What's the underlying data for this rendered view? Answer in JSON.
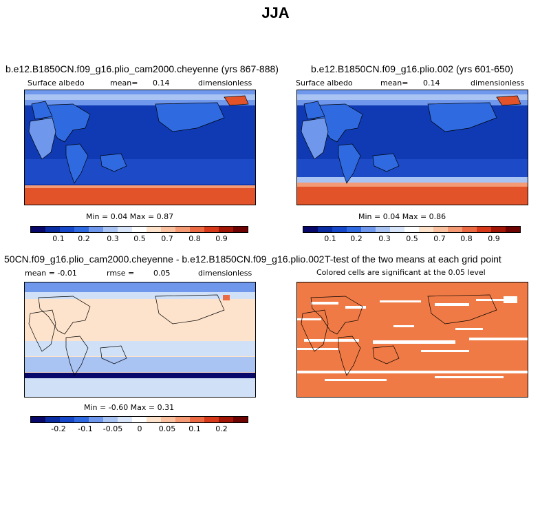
{
  "title": "JJA",
  "panels": [
    {
      "id": "p1",
      "title": "b.e12.B1850CN.f09_g16.plio_cam2000.cheyenne (yrs 867-888)",
      "left_label": "Surface albedo",
      "mean_label": "mean=",
      "mean_value": "0.14",
      "right_label": "dimensionless",
      "min_max_text": "Min =   0.04  Max =   0.87",
      "colorbar_ticks": [
        "0.1",
        "0.2",
        "0.3",
        "0.5",
        "0.7",
        "0.8",
        "0.9"
      ]
    },
    {
      "id": "p2",
      "title": "b.e12.B1850CN.f09_g16.plio.002 (yrs 601-650)",
      "left_label": "Surface albedo",
      "mean_label": "mean=",
      "mean_value": "0.14",
      "right_label": "dimensionless",
      "min_max_text": "Min =   0.04  Max =   0.86",
      "colorbar_ticks": [
        "0.1",
        "0.2",
        "0.3",
        "0.5",
        "0.7",
        "0.8",
        "0.9"
      ]
    },
    {
      "id": "p3",
      "title": "50CN.f09_g16.plio_cam2000.cheyenne - b.e12.B1850CN.f09_g16.plio.002",
      "left_label": "mean =  -0.01",
      "mean_label": "rmse =",
      "mean_value": "0.05",
      "right_label": "dimensionless",
      "min_max_text": "Min =  -0.60  Max =   0.31",
      "colorbar_ticks": [
        "-0.2",
        "-0.1",
        "-0.05",
        "0",
        "0.05",
        "0.1",
        "0.2"
      ]
    },
    {
      "id": "p4",
      "title": "T-test of the two means at each grid point",
      "subtitle": "Colored cells are significant at the 0.05 level"
    }
  ],
  "chart_data": [
    {
      "type": "heatmap",
      "title": "b.e12.B1850CN.f09_g16.plio_cam2000.cheyenne (yrs 867-888)",
      "variable": "Surface albedo",
      "units": "dimensionless",
      "mean": 0.14,
      "min": 0.04,
      "max": 0.87,
      "colorbar_levels": [
        0.1,
        0.2,
        0.3,
        0.5,
        0.7,
        0.8,
        0.9
      ]
    },
    {
      "type": "heatmap",
      "title": "b.e12.B1850CN.f09_g16.plio.002 (yrs 601-650)",
      "variable": "Surface albedo",
      "units": "dimensionless",
      "mean": 0.14,
      "min": 0.04,
      "max": 0.86,
      "colorbar_levels": [
        0.1,
        0.2,
        0.3,
        0.5,
        0.7,
        0.8,
        0.9
      ]
    },
    {
      "type": "heatmap",
      "title": "50CN.f09_g16.plio_cam2000.cheyenne - b.e12.B1850CN.f09_g16.plio.002",
      "units": "dimensionless",
      "mean": -0.01,
      "rmse": 0.05,
      "min": -0.6,
      "max": 0.31,
      "colorbar_levels": [
        -0.2,
        -0.1,
        -0.05,
        0,
        0.05,
        0.1,
        0.2
      ]
    },
    {
      "type": "heatmap",
      "title": "T-test of the two means at each grid point",
      "subtitle": "Colored cells are significant at the 0.05 level"
    }
  ],
  "colors": {
    "ocean_blue": "#0f3ab4",
    "land_blue": "#2d5fd8",
    "light_blue": "#7fa3ee",
    "ice_red": "#e2532a",
    "ice_pink": "#f5b79a",
    "diff_beige": "#fde3cc",
    "diff_lightblue": "#cfe0f7",
    "ttest_orange": "#f07a45",
    "colorbar": [
      "#08086b",
      "#0a2ca3",
      "#1648c9",
      "#2f6ae0",
      "#6f98ec",
      "#a9c3f3",
      "#d9e6f9",
      "#ffffff",
      "#fde3cc",
      "#f9c1a0",
      "#f49a74",
      "#ec6a43",
      "#d63a1b",
      "#a11606",
      "#6e0303"
    ]
  }
}
